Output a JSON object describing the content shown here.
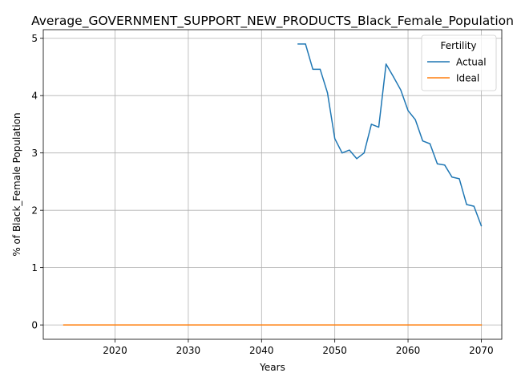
{
  "chart_data": {
    "type": "line",
    "title": "Average_GOVERNMENT_SUPPORT_NEW_PRODUCTS_Black_Female_Population",
    "xlabel": "Years",
    "ylabel": "% of Black_Female Population",
    "xlim": [
      2010.2,
      2072.8
    ],
    "ylim": [
      -0.25,
      5.15
    ],
    "x_ticks": [
      2020,
      2030,
      2040,
      2050,
      2060,
      2070
    ],
    "x_tick_labels": [
      "2020",
      "2030",
      "2040",
      "2050",
      "2060",
      "2070"
    ],
    "y_ticks": [
      0,
      1,
      2,
      3,
      4,
      5
    ],
    "y_tick_labels": [
      "0",
      "1",
      "2",
      "3",
      "4",
      "5"
    ],
    "grid": true,
    "legend": {
      "title": "Fertility",
      "placement": "top-right"
    },
    "series": [
      {
        "name": "Actual",
        "color": "#1f77b4",
        "x": [
          2045,
          2046,
          2047,
          2048,
          2049,
          2050,
          2051,
          2052,
          2053,
          2054,
          2055,
          2056,
          2057,
          2058,
          2059,
          2060,
          2061,
          2062,
          2063,
          2064,
          2065,
          2066,
          2067,
          2068,
          2069,
          2070
        ],
        "values": [
          4.9,
          4.9,
          4.46,
          4.46,
          4.05,
          3.25,
          3.0,
          3.05,
          2.9,
          3.0,
          3.5,
          3.45,
          4.55,
          4.33,
          4.1,
          3.74,
          3.58,
          3.21,
          3.16,
          2.81,
          2.79,
          2.58,
          2.55,
          2.1,
          2.07,
          1.73
        ]
      },
      {
        "name": "Ideal",
        "color": "#ff7f0e",
        "x": [
          2013,
          2070
        ],
        "values": [
          0,
          0
        ]
      }
    ]
  }
}
